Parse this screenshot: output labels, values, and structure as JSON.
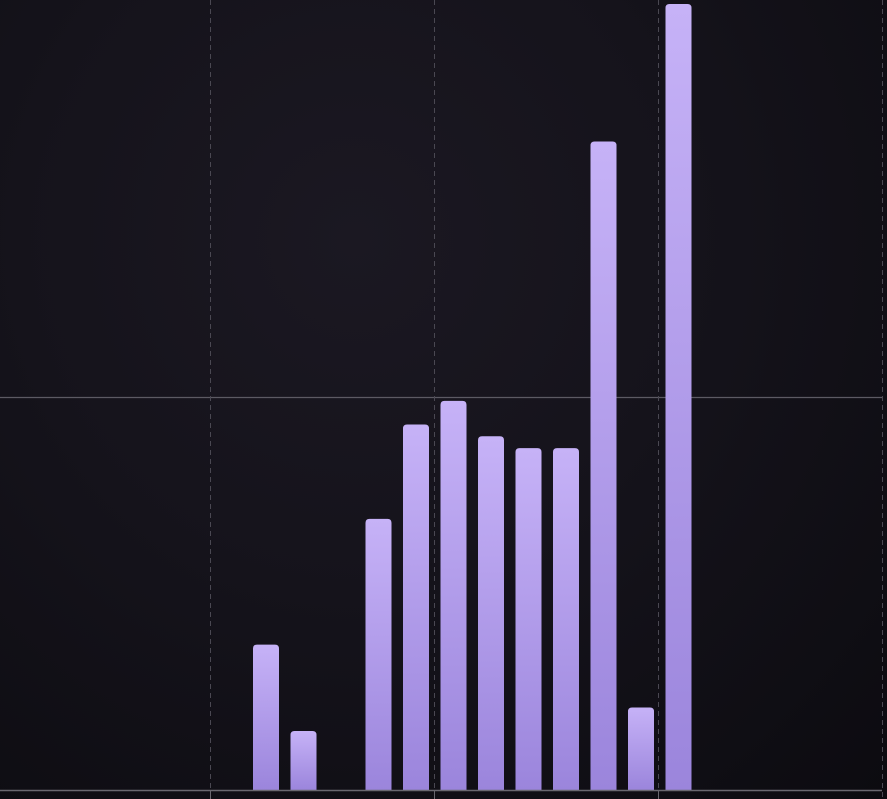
{
  "chart_data": {
    "type": "bar",
    "title": "",
    "xlabel": "",
    "ylabel": "",
    "values": [
      37,
      15,
      0,
      69,
      93,
      99,
      90,
      87,
      87,
      165,
      21,
      200
    ],
    "ylim": [
      0,
      200
    ],
    "grid": true,
    "legend": "none",
    "colors": {
      "bar_top": "#c6b2f7",
      "bar_bottom": "#9b85dc",
      "grid_solid": "#5c5a63",
      "grid_dashed": "#4a4852",
      "axis": "#6a6870"
    }
  }
}
